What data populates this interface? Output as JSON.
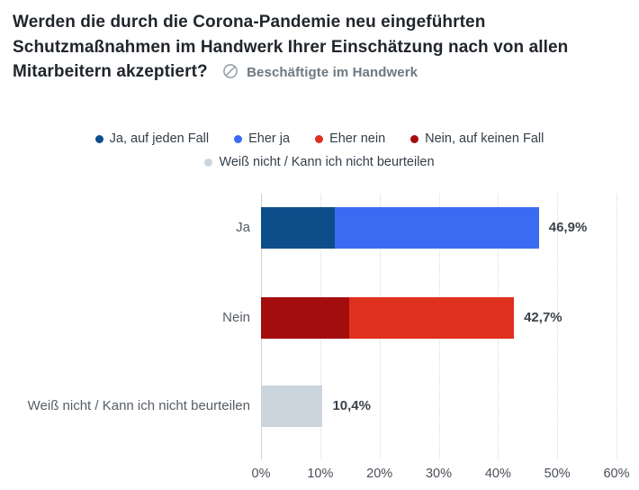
{
  "header": {
    "title": "Werden die durch die Corona-Pandemie neu eingeführten Schutzmaßnahmen im Handwerk Ihrer Einschätzung nach von allen Mitarbeitern akzeptiert?",
    "subtitle": "Beschäftigte im Handwerk",
    "subtitle_icon": "circle-slash-icon"
  },
  "colors": {
    "ja_auf_jeden_fall": "#0d4e8a",
    "eher_ja": "#3a6bf2",
    "eher_nein": "#e0301e",
    "nein_auf_keinen_fall": "#a40d0d",
    "weiss_nicht": "#cbd5dd",
    "title_text": "#21262c",
    "subtitle_text": "#6f7981",
    "grid_dotted": "#d7d9db"
  },
  "chart_data": {
    "type": "bar",
    "orientation": "horizontal",
    "title": "",
    "xlabel": "",
    "ylabel": "",
    "xlim": [
      0,
      60
    ],
    "x_ticks": [
      "0%",
      "10%",
      "20%",
      "30%",
      "40%",
      "50%",
      "60%"
    ],
    "grid": "vertical-dotted",
    "legend_position": "top-center",
    "categories": [
      "Ja",
      "Nein",
      "Weiß nicht / Kann ich nicht beurteilen"
    ],
    "totals": [
      46.9,
      42.7,
      10.4
    ],
    "total_labels": [
      "46,9%",
      "42,7%",
      "10,4%"
    ],
    "series": [
      {
        "name": "Ja, auf jeden Fall",
        "color": "#0d4e8a"
      },
      {
        "name": "Eher ja",
        "color": "#3a6bf2"
      },
      {
        "name": "Eher nein",
        "color": "#e0301e"
      },
      {
        "name": "Nein, auf keinen Fall",
        "color": "#a40d0d"
      },
      {
        "name": "Weiß nicht / Kann ich nicht beurteilen",
        "color": "#cbd5dd"
      }
    ],
    "bars": [
      {
        "category": "Ja",
        "total": 46.9,
        "total_label": "46,9%",
        "segments": [
          {
            "series": "Ja, auf jeden Fall",
            "value": 12.5,
            "color": "#0d4e8a"
          },
          {
            "series": "Eher ja",
            "value": 34.4,
            "color": "#3a6bf2"
          }
        ]
      },
      {
        "category": "Nein",
        "total": 42.7,
        "total_label": "42,7%",
        "segments": [
          {
            "series": "Nein, auf keinen Fall",
            "value": 14.9,
            "color": "#a40d0d"
          },
          {
            "series": "Eher nein",
            "value": 27.8,
            "color": "#e0301e"
          }
        ]
      },
      {
        "category": "Weiß nicht / Kann ich nicht beurteilen",
        "total": 10.4,
        "total_label": "10,4%",
        "segments": [
          {
            "series": "Weiß nicht / Kann ich nicht beurteilen",
            "value": 10.4,
            "color": "#cbd5dd"
          }
        ]
      }
    ]
  }
}
